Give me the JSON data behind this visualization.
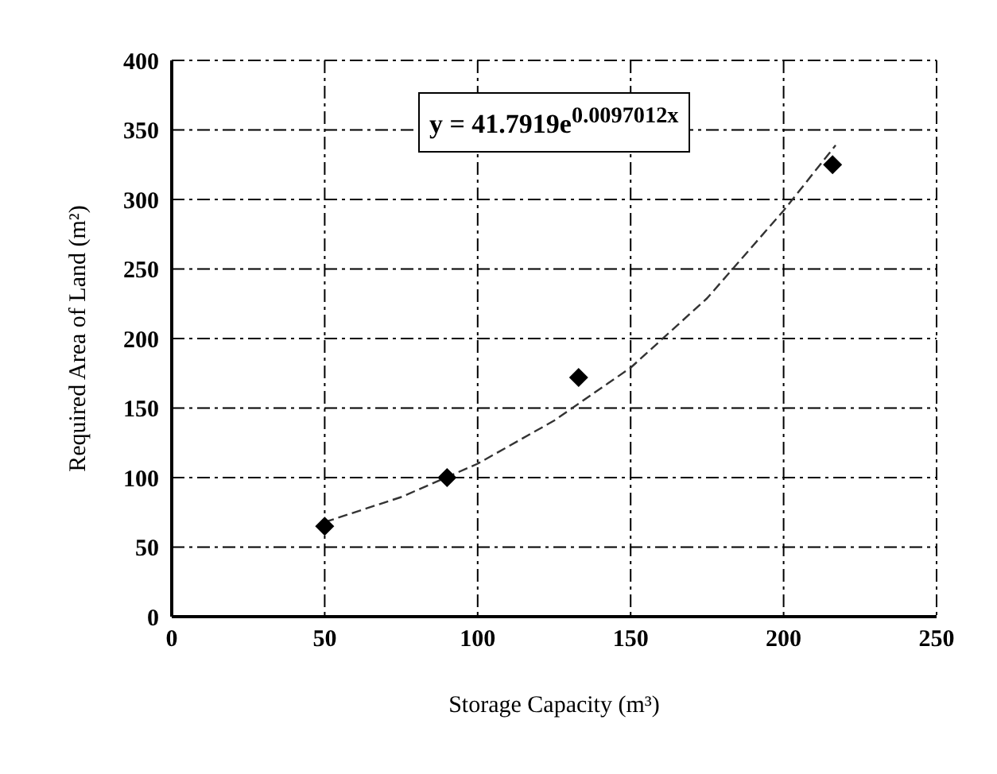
{
  "chart_data": {
    "type": "scatter",
    "xlabel": "Storage Capacity (m³)",
    "ylabel": "Required Area of Land (m²)",
    "annotations": [
      "y = 41.7919e$^{0.0097012x}$"
    ],
    "x": [
      50,
      90,
      133,
      216
    ],
    "series": [
      {
        "color": "#000000",
        "marker": "diamond",
        "values": [
          65,
          100,
          172,
          325
        ]
      },
      {
        "type": "line",
        "color": "#333333",
        "marker": "none",
        "line_style": "dashed",
        "x": [
          50,
          75,
          100,
          125,
          150,
          175,
          200,
          217
        ],
        "values": [
          68,
          86,
          110,
          141,
          179,
          229,
          292,
          339
        ]
      }
    ],
    "xlim": [
      0,
      250
    ],
    "xticks": [
      0,
      50,
      100,
      150,
      200,
      250
    ],
    "ylim": [
      0,
      400
    ],
    "yticks": [
      0,
      50,
      100,
      150,
      200,
      250,
      300,
      350,
      400
    ],
    "grid": true,
    "legend": false
  }
}
